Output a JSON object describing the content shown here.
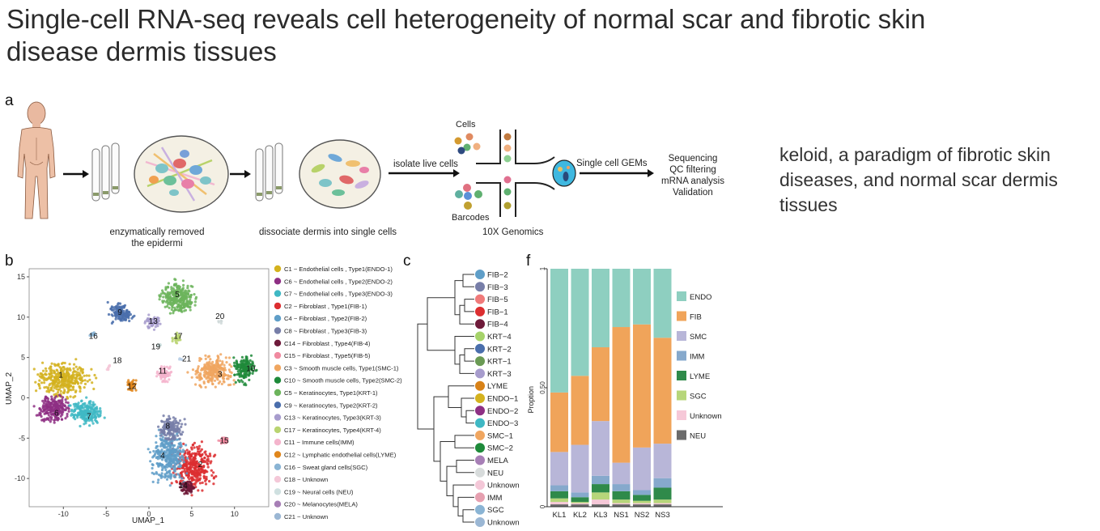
{
  "title": "Single-cell RNA-seq reveals cell heterogeneity of normal scar and fibrotic skin disease dermis tissues",
  "side_text": "keloid, a paradigm of fibrotic skin diseases, and normal scar dermis tissues",
  "panel_a": {
    "label": "a",
    "step1_line1": "enzymatically removed",
    "step1_line2": "the epidermi",
    "step2": "dissociate dermis into single cells",
    "arrow_isolate": "isolate live cells",
    "cells": "Cells",
    "barcodes": "Barcodes",
    "genomics": "10X Genomics",
    "gems": "Single cell GEMs",
    "final_steps": [
      "Sequencing",
      "QC filtering",
      "mRNA analysis",
      "Validation"
    ]
  },
  "panel_b": {
    "label": "b",
    "xlabel": "UMAP_1",
    "ylabel": "UMAP_2",
    "xticks": [
      "-10",
      "-5",
      "0",
      "5",
      "10"
    ],
    "yticks": [
      "15",
      "10",
      "5",
      "0",
      "-5",
      "-10"
    ],
    "clusters": [
      {
        "id": "1",
        "color": "#d4b21e"
      },
      {
        "id": "6",
        "color": "#8e2f84"
      },
      {
        "id": "7",
        "color": "#3fb8c4"
      },
      {
        "id": "2",
        "color": "#dc2e30"
      },
      {
        "id": "4",
        "color": "#5f9ec8"
      },
      {
        "id": "8",
        "color": "#777ea8"
      },
      {
        "id": "14",
        "color": "#6e1a3a"
      },
      {
        "id": "3",
        "color": "#f0a660"
      },
      {
        "id": "10",
        "color": "#1e8a3a"
      },
      {
        "id": "5",
        "color": "#6cb45c"
      },
      {
        "id": "9",
        "color": "#4a6eac"
      },
      {
        "id": "13",
        "color": "#a79ccd"
      },
      {
        "id": "17",
        "color": "#b9d471"
      },
      {
        "id": "11",
        "color": "#f4b4cc"
      },
      {
        "id": "12",
        "color": "#e0861c"
      },
      {
        "id": "16",
        "color": "#8ab4d4"
      },
      {
        "id": "18",
        "color": "#f4c8d8"
      },
      {
        "id": "19",
        "color": "#cfe0e0"
      },
      {
        "id": "20",
        "color": "#cfd8d8"
      },
      {
        "id": "21",
        "color": "#b8cfe6"
      },
      {
        "id": "15",
        "color": "#f08aa0"
      }
    ],
    "legend": [
      {
        "label": "C1 ~ Endothelial cells , Type1(ENDO-1)",
        "color": "#d4b21e"
      },
      {
        "label": "C6 ~ Endothelial cells , Type2(ENDO-2)",
        "color": "#8e2f84"
      },
      {
        "label": "C7 ~ Endothelial cells , Type3(ENDO-3)",
        "color": "#3fb8c4"
      },
      {
        "label": "C2 ~ Fibroblast , Type1(FIB-1)",
        "color": "#dc2e30"
      },
      {
        "label": "C4 ~ Fibroblast , Type2(FIB-2)",
        "color": "#5f9ec8"
      },
      {
        "label": "C8 ~ Fibroblast , Type3(FIB-3)",
        "color": "#777ea8"
      },
      {
        "label": "C14 ~ Fibroblast , Type4(FIB-4)",
        "color": "#6e1a3a"
      },
      {
        "label": "C15 ~ Fibroblast , Type5(FIB-5)",
        "color": "#f08aa0"
      },
      {
        "label": "C3 ~ Smooth muscle cells, Type1(SMC-1)",
        "color": "#f0a660"
      },
      {
        "label": "C10 ~ Smooth muscle cells, Type2(SMC-2)",
        "color": "#1e8a3a"
      },
      {
        "label": "C5 ~ Keratinocytes, Type1(KRT-1)",
        "color": "#6cb45c"
      },
      {
        "label": "C9 ~ Keratinocytes, Type2(KRT-2)",
        "color": "#4a6eac"
      },
      {
        "label": "C13 ~ Keratinocytes, Type3(KRT-3)",
        "color": "#a79ccd"
      },
      {
        "label": "C17 ~ Keratinocytes, Type4(KRT-4)",
        "color": "#b9d471"
      },
      {
        "label": "C11 ~ Immune cells(IMM)",
        "color": "#f4b4cc"
      },
      {
        "label": "C12 ~ Lymphatic endothelial cells(LYME)",
        "color": "#e0861c"
      },
      {
        "label": "C16 ~ Sweat gland cells(SGC)",
        "color": "#8ab4d4"
      },
      {
        "label": "C18 ~ Unknown",
        "color": "#f4c8d8"
      },
      {
        "label": "C19 ~ Neural cells (NEU)",
        "color": "#cfe0e0"
      },
      {
        "label": "C20 ~ Melanocytes(MELA)",
        "color": "#a77fb6"
      },
      {
        "label": "C21 ~ Unknown",
        "color": "#9bb7d4"
      }
    ]
  },
  "panel_c": {
    "label": "c",
    "leaves": [
      {
        "name": "FIB−2",
        "color": "#5f9ec8"
      },
      {
        "name": "FIB−3",
        "color": "#777ea8"
      },
      {
        "name": "FIB−5",
        "color": "#f07a7a"
      },
      {
        "name": "FIB−1",
        "color": "#dc2e30"
      },
      {
        "name": "FIB−4",
        "color": "#6e1a3a"
      },
      {
        "name": "KRT−4",
        "color": "#a6d36a"
      },
      {
        "name": "KRT−2",
        "color": "#4a6eac"
      },
      {
        "name": "KRT−1",
        "color": "#6a9a54"
      },
      {
        "name": "KRT−3",
        "color": "#a79ccd"
      },
      {
        "name": "LYME",
        "color": "#d88218"
      },
      {
        "name": "ENDO−1",
        "color": "#d4b21e"
      },
      {
        "name": "ENDO−2",
        "color": "#8e2f84"
      },
      {
        "name": "ENDO−3",
        "color": "#3fb8c4"
      },
      {
        "name": "SMC−1",
        "color": "#f0a660"
      },
      {
        "name": "SMC−2",
        "color": "#1e8a3a"
      },
      {
        "name": "MELA",
        "color": "#a77fb6"
      },
      {
        "name": "NEU",
        "color": "#d8dcdc"
      },
      {
        "name": "Unknown",
        "color": "#f4c8d8"
      },
      {
        "name": "IMM",
        "color": "#e6a0b0"
      },
      {
        "name": "SGC",
        "color": "#8ab4d4"
      },
      {
        "name": "Unknown",
        "color": "#9bb7d4"
      }
    ]
  },
  "panel_f": {
    "label": "f"
  },
  "chart_data": {
    "type": "bar",
    "stacked": true,
    "ylabel": "Proption",
    "ylim": [
      0,
      1
    ],
    "yticks": [
      "0",
      "0.50",
      "1"
    ],
    "categories": [
      "KL1",
      "KL2",
      "KL3",
      "NS1",
      "NS2",
      "NS3"
    ],
    "series": [
      {
        "name": "NEU",
        "color": "#6b6b6b",
        "values": [
          0.01,
          0.01,
          0.01,
          0.01,
          0.01,
          0.01
        ]
      },
      {
        "name": "Unknown",
        "color": "#f6c8d8",
        "values": [
          0.01,
          0.005,
          0.02,
          0.005,
          0.005,
          0.005
        ]
      },
      {
        "name": "SGC",
        "color": "#b7d67a",
        "values": [
          0.015,
          0.005,
          0.03,
          0.015,
          0.01,
          0.015
        ]
      },
      {
        "name": "LYME",
        "color": "#2f8a4a",
        "values": [
          0.03,
          0.02,
          0.035,
          0.035,
          0.025,
          0.05
        ]
      },
      {
        "name": "IMM",
        "color": "#86a9cc",
        "values": [
          0.025,
          0.02,
          0.035,
          0.03,
          0.02,
          0.04
        ]
      },
      {
        "name": "SMC",
        "color": "#b8b6d8",
        "values": [
          0.14,
          0.2,
          0.23,
          0.09,
          0.18,
          0.145
        ]
      },
      {
        "name": "FIB",
        "color": "#f0a45a",
        "values": [
          0.25,
          0.29,
          0.31,
          0.57,
          0.52,
          0.445
        ]
      },
      {
        "name": "ENDO",
        "color": "#8ecfc0",
        "values": [
          0.52,
          0.45,
          0.33,
          0.245,
          0.235,
          0.29
        ]
      }
    ],
    "legend_order": [
      "ENDO",
      "FIB",
      "SMC",
      "IMM",
      "LYME",
      "SGC",
      "Unknown",
      "NEU"
    ],
    "legend_position": "right"
  }
}
